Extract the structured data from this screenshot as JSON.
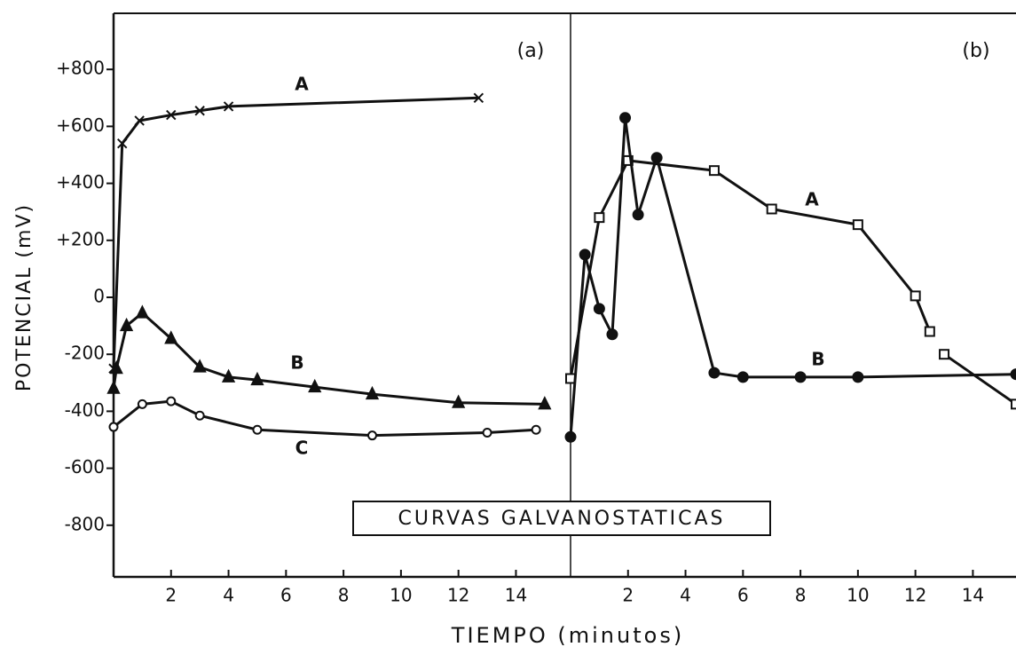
{
  "title": "CURVAS GALVANOSTATICAS",
  "xlabel": "TIEMPO (minutos)",
  "ylabel": "POTENCIAL (mV)",
  "chart_data": [
    {
      "type": "line",
      "label": "(a)",
      "xlim": [
        0,
        15.9
      ],
      "ylim": [
        -1000,
        1000
      ],
      "xticks": [
        2,
        4,
        6,
        8,
        10,
        12,
        14
      ],
      "yticks": [
        {
          "value": 800,
          "label": "+800"
        },
        {
          "value": 600,
          "label": "+600"
        },
        {
          "value": 400,
          "label": "+400"
        },
        {
          "value": 200,
          "label": "+200"
        },
        0,
        -200,
        -400,
        -600,
        -800
      ],
      "series": [
        {
          "name": "A",
          "color": "#111",
          "marker": "x",
          "x": [
            0,
            0.3,
            0.9,
            2,
            3,
            4,
            12.7
          ],
          "values": [
            -250,
            540,
            620,
            640,
            655,
            670,
            700
          ]
        },
        {
          "name": "B",
          "color": "#111",
          "marker": "triangle",
          "x": [
            0,
            0.1,
            0.45,
            1,
            2,
            3,
            4,
            5,
            7,
            9,
            12,
            15
          ],
          "values": [
            -320,
            -250,
            -100,
            -55,
            -145,
            -245,
            -280,
            -290,
            -315,
            -340,
            -370,
            -375
          ]
        },
        {
          "name": "C",
          "color": "#111",
          "marker": "circle",
          "x": [
            0,
            1,
            2,
            3,
            5,
            9,
            13,
            14.7
          ],
          "values": [
            -455,
            -375,
            -365,
            -415,
            -465,
            -485,
            -475,
            -465
          ]
        }
      ]
    },
    {
      "type": "line",
      "label": "(b)",
      "xlim": [
        0,
        15.5
      ],
      "ylim": [
        -1000,
        1000
      ],
      "xticks": [
        2,
        4,
        6,
        8,
        10,
        12,
        14
      ],
      "series": [
        {
          "name": "A",
          "color": "#111",
          "marker": "square",
          "x": [
            0,
            1,
            2,
            5,
            7,
            10,
            12,
            12.5,
            12.6,
            13,
            15.5
          ],
          "values": [
            -285,
            280,
            480,
            445,
            310,
            255,
            5,
            -120,
            null,
            -200,
            -375
          ]
        },
        {
          "name": "B",
          "color": "#111",
          "marker": "dot",
          "x": [
            0,
            0.5,
            1,
            1.45,
            1.9,
            2.35,
            3,
            5,
            6,
            8,
            10,
            15.5
          ],
          "values": [
            -490,
            150,
            -40,
            -130,
            630,
            290,
            490,
            -265,
            -280,
            -280,
            -280,
            -270
          ]
        }
      ]
    }
  ]
}
